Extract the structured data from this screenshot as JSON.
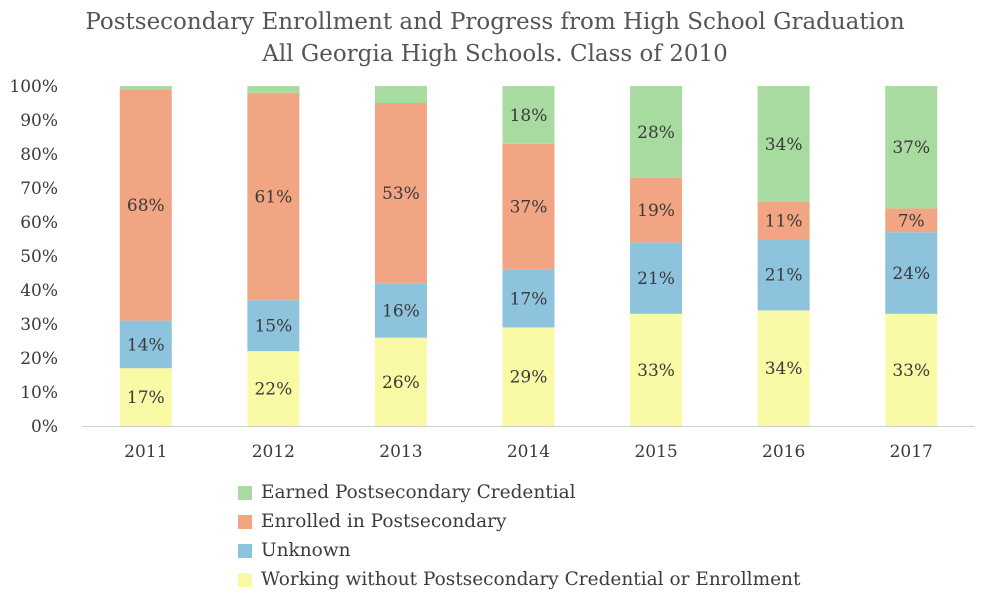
{
  "chart_data": {
    "type": "bar",
    "stacked": true,
    "title": [
      "Postsecondary Enrollment and Progress from High School Graduation",
      "All Georgia High Schools. Class of 2010"
    ],
    "categories": [
      "2011",
      "2012",
      "2013",
      "2014",
      "2015",
      "2016",
      "2017"
    ],
    "ylim": [
      0,
      100
    ],
    "yticks": [
      "0%",
      "10%",
      "20%",
      "30%",
      "40%",
      "50%",
      "60%",
      "70%",
      "80%",
      "90%",
      "100%"
    ],
    "series": [
      {
        "name": "Working without Postsecondary Credential or Enrollment",
        "color": "#fafaa6",
        "values": [
          17,
          22,
          26,
          29,
          33,
          34,
          33
        ],
        "labels": [
          "17%",
          "22%",
          "26%",
          "29%",
          "33%",
          "34%",
          "33%"
        ]
      },
      {
        "name": "Unknown",
        "color": "#8ec3de",
        "values": [
          14,
          15,
          16,
          17,
          21,
          21,
          24
        ],
        "labels": [
          "14%",
          "15%",
          "16%",
          "17%",
          "21%",
          "21%",
          "24%"
        ]
      },
      {
        "name": "Enrolled in Postsecondary",
        "color": "#f2a583",
        "values": [
          68,
          61,
          53,
          37,
          19,
          11,
          7
        ],
        "labels": [
          "68%",
          "61%",
          "53%",
          "37%",
          "19%",
          "11%",
          "7%"
        ]
      },
      {
        "name": "Earned Postsecondary Credential",
        "color": "#a8dba0",
        "values": [
          1,
          2,
          5,
          18,
          28,
          34,
          37
        ],
        "labels": [
          "",
          "",
          "",
          "18%",
          "28%",
          "34%",
          "37%"
        ]
      }
    ],
    "legend": [
      "Earned Postsecondary Credential",
      "Enrolled in Postsecondary",
      "Unknown",
      "Working without Postsecondary Credential or Enrollment"
    ],
    "grid": false,
    "legend_position": "bottom"
  }
}
